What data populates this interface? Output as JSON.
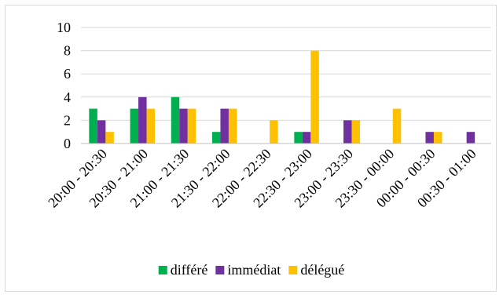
{
  "chart_data": {
    "type": "bar",
    "title": "",
    "xlabel": "",
    "ylabel": "",
    "categories": [
      "20:00 - 20:30",
      "20:30 - 21:00",
      "21:00 - 21:30",
      "21:30 - 22:00",
      "22:00 - 22:30",
      "22:30 - 23:00",
      "23:00 - 23:30",
      "23:30 - 00:00",
      "00:00 - 00:30",
      "00:30 - 01:00"
    ],
    "series": [
      {
        "name": "différé",
        "color": "#00b050",
        "values": [
          3,
          3,
          4,
          1,
          0,
          1,
          0,
          0,
          0,
          0
        ]
      },
      {
        "name": "immédiat",
        "color": "#7030a0",
        "values": [
          2,
          4,
          3,
          3,
          0,
          1,
          2,
          0,
          1,
          1
        ]
      },
      {
        "name": "délégué",
        "color": "#ffc000",
        "values": [
          1,
          3,
          3,
          3,
          2,
          8,
          2,
          3,
          1,
          0
        ]
      }
    ],
    "ylim": [
      0,
      10
    ],
    "yticks": [
      0,
      2,
      4,
      6,
      8,
      10
    ],
    "grid": true,
    "legend": "bottom"
  }
}
